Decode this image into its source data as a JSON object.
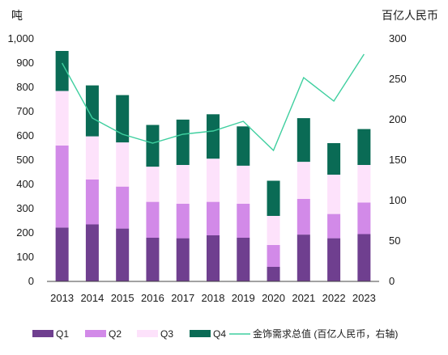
{
  "chart_data": {
    "type": "bar",
    "stacked": true,
    "left_axis_unit": "吨",
    "right_axis_unit": "百亿人民币",
    "categories": [
      "2013",
      "2014",
      "2015",
      "2016",
      "2017",
      "2018",
      "2019",
      "2020",
      "2021",
      "2022",
      "2023"
    ],
    "left_ylim": [
      0,
      1000
    ],
    "left_yticks": [
      "0",
      "100",
      "200",
      "300",
      "400",
      "500",
      "600",
      "700",
      "800",
      "900",
      "1,000"
    ],
    "right_ylim": [
      0,
      300
    ],
    "right_yticks": [
      "0",
      "50",
      "100",
      "150",
      "200",
      "250",
      "300"
    ],
    "grid": false,
    "legend_position": "bottom",
    "series": [
      {
        "name": "Q1",
        "color": "#6f3f8f",
        "values": [
          222,
          235,
          218,
          180,
          178,
          190,
          180,
          60,
          193,
          178,
          195
        ]
      },
      {
        "name": "Q2",
        "color": "#d28ae8",
        "values": [
          338,
          185,
          173,
          148,
          142,
          138,
          140,
          90,
          147,
          100,
          130
        ]
      },
      {
        "name": "Q3",
        "color": "#fde2fb",
        "values": [
          225,
          178,
          182,
          145,
          160,
          178,
          157,
          120,
          153,
          162,
          155
        ]
      },
      {
        "name": "Q4",
        "color": "#0a6b55",
        "values": [
          165,
          210,
          195,
          172,
          187,
          183,
          162,
          145,
          180,
          130,
          148
        ]
      }
    ],
    "line_series": {
      "name": "金饰需求总值 (百亿人民币，右轴)",
      "color": "#3fcf9f",
      "axis": "right",
      "values": [
        270,
        202,
        182,
        171,
        182,
        186,
        198,
        162,
        252,
        223,
        281
      ]
    }
  }
}
